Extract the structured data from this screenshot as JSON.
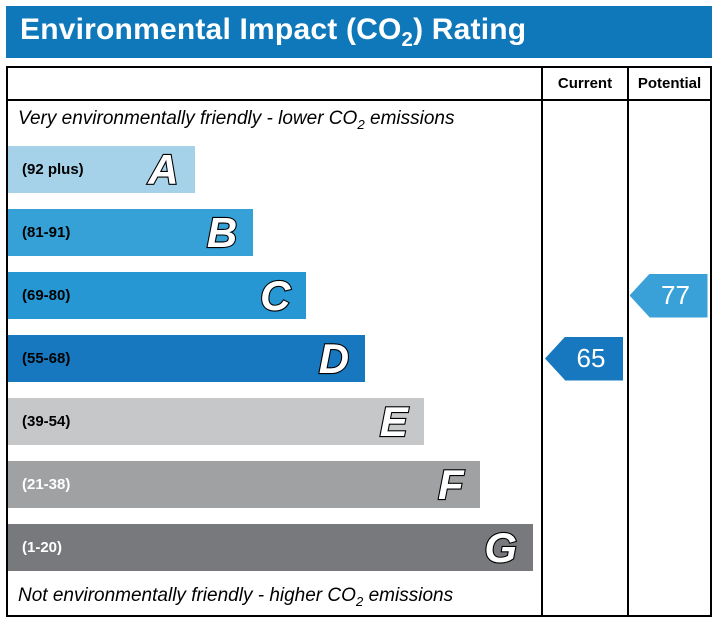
{
  "colors": {
    "header_bg": "#0e78ba",
    "border": "#000000",
    "background": "#ffffff"
  },
  "header": {
    "title_prefix": "Environmental Impact (CO",
    "title_sub": "2",
    "title_suffix": ") Rating"
  },
  "table": {
    "current_label": "Current",
    "potential_label": "Potential"
  },
  "captions": {
    "top_prefix": "Very environmentally friendly - lower CO",
    "top_sub": "2",
    "top_suffix": " emissions",
    "bottom_prefix": "Not environmentally friendly - higher CO",
    "bottom_sub": "2",
    "bottom_suffix": " emissions"
  },
  "chart_data": {
    "type": "bar",
    "title": "Environmental Impact (CO2) Rating",
    "bands": [
      {
        "letter": "A",
        "range": "(92 plus)",
        "range_min": 92,
        "width_pct": 35,
        "color": "#a5d2e8",
        "text_color": "#000000"
      },
      {
        "letter": "B",
        "range": "(81-91)",
        "range_min": 81,
        "range_max": 91,
        "width_pct": 46,
        "color": "#36a1d7",
        "text_color": "#000000"
      },
      {
        "letter": "C",
        "range": "(69-80)",
        "range_min": 69,
        "range_max": 80,
        "width_pct": 56,
        "color": "#2697d3",
        "text_color": "#000000"
      },
      {
        "letter": "D",
        "range": "(55-68)",
        "range_min": 55,
        "range_max": 68,
        "width_pct": 67,
        "color": "#1878bf",
        "text_color": "#000000"
      },
      {
        "letter": "E",
        "range": "(39-54)",
        "range_min": 39,
        "range_max": 54,
        "width_pct": 78,
        "color": "#c6c7c9",
        "text_color": "#000000"
      },
      {
        "letter": "F",
        "range": "(21-38)",
        "range_min": 21,
        "range_max": 38,
        "width_pct": 88.5,
        "color": "#9fa1a3",
        "text_color": "#ffffff"
      },
      {
        "letter": "G",
        "range": "(1-20)",
        "range_min": 1,
        "range_max": 20,
        "width_pct": 98.5,
        "color": "#77797c",
        "text_color": "#ffffff"
      }
    ],
    "current": {
      "value": 65,
      "band": "D",
      "color": "#1878bf"
    },
    "potential": {
      "value": 77,
      "band": "C",
      "color": "#3aa1d8"
    }
  }
}
